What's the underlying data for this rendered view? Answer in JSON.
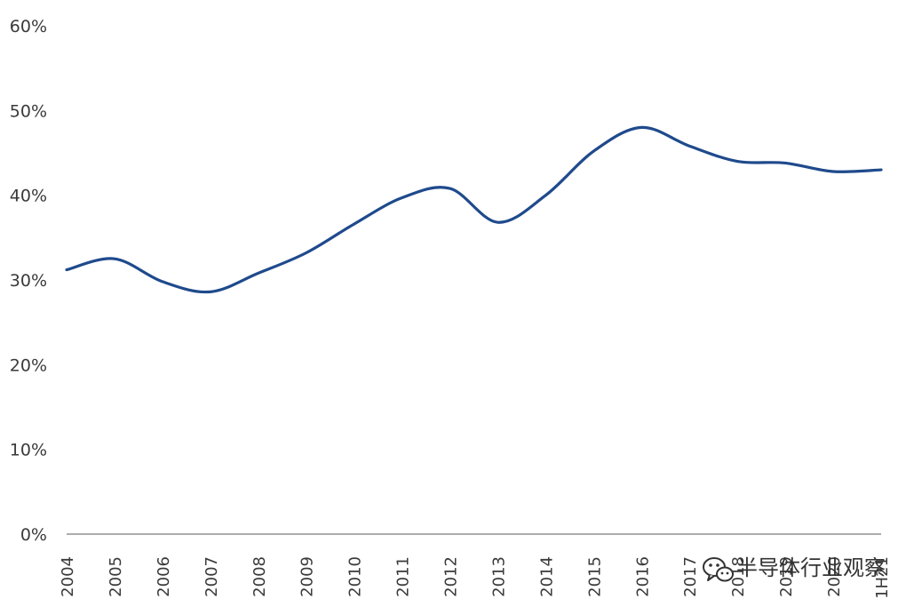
{
  "chart_data": {
    "type": "line",
    "title": "",
    "xlabel": "",
    "ylabel": "",
    "ylim": [
      0,
      60
    ],
    "grid": false,
    "y_ticks": [
      "0%",
      "10%",
      "20%",
      "30%",
      "40%",
      "50%",
      "60%"
    ],
    "y_tick_values": [
      0,
      10,
      20,
      30,
      40,
      50,
      60
    ],
    "categories": [
      "2004",
      "2005",
      "2006",
      "2007",
      "2008",
      "2009",
      "2010",
      "2011",
      "2012",
      "2013",
      "2014",
      "2015",
      "2016",
      "2017",
      "2018",
      "2019",
      "2020",
      "1H21"
    ],
    "series": [
      {
        "color": "#1f4a8c",
        "values": [
          31.2,
          32.5,
          29.8,
          28.6,
          30.8,
          33.2,
          36.6,
          39.7,
          40.8,
          36.8,
          40.0,
          45.2,
          48.0,
          45.8,
          44.0,
          43.8,
          42.8,
          43.0
        ]
      }
    ]
  },
  "watermark": {
    "icon": "wechat-icon",
    "text": "半导体行业观察"
  }
}
